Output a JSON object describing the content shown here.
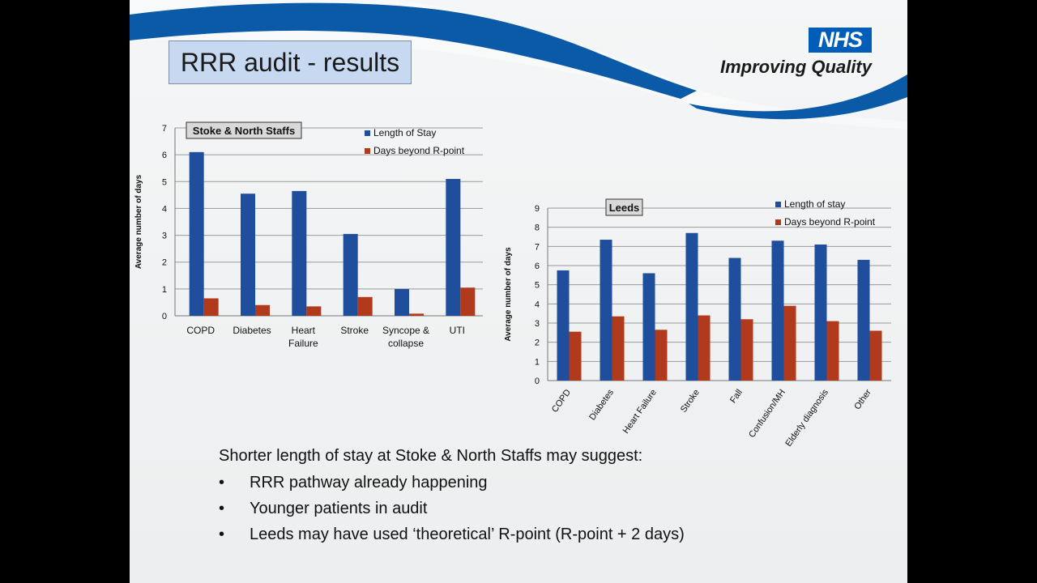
{
  "slide": {
    "title": "RRR audit - results",
    "logo_text": "NHS",
    "tagline": "Improving Quality"
  },
  "summary": {
    "lead": "Shorter length of stay at Stoke & North Staffs may suggest:",
    "bullets": [
      "RRR pathway already happening",
      "Younger patients in audit",
      "Leeds may have used ‘theoretical’ R-point (R-point + 2 days)"
    ]
  },
  "colors": {
    "series1": "#1f4e9c",
    "series2": "#b13a1c",
    "nhs_blue": "#005eb8"
  },
  "chart_data": [
    {
      "type": "bar",
      "title": "Stoke & North Staffs",
      "ylabel": "Average number of days",
      "ylim": [
        0,
        7
      ],
      "yticks": [
        0,
        1,
        2,
        3,
        4,
        5,
        6,
        7
      ],
      "grid": true,
      "legend_position": "top-right",
      "categories": [
        "COPD",
        "Diabetes",
        "Heart Failure",
        "Stroke",
        "Syncope & collapse",
        "UTI"
      ],
      "series": [
        {
          "name": "Length of Stay",
          "values": [
            6.1,
            4.55,
            4.65,
            3.05,
            1.0,
            5.1
          ]
        },
        {
          "name": "Days beyond R-point",
          "values": [
            0.65,
            0.4,
            0.35,
            0.7,
            0.08,
            1.05
          ]
        }
      ]
    },
    {
      "type": "bar",
      "title": "Leeds",
      "ylabel": "Average number of days",
      "ylim": [
        0,
        9
      ],
      "yticks": [
        0,
        1,
        2,
        3,
        4,
        5,
        6,
        7,
        8,
        9
      ],
      "grid": true,
      "legend_position": "top-right",
      "categories": [
        "COPD",
        "Diabetes",
        "Heart Failure",
        "Stroke",
        "Fall",
        "Confusion/MH",
        "Elderly diagnosis",
        "Other"
      ],
      "series": [
        {
          "name": "Length of stay",
          "values": [
            5.75,
            7.35,
            5.6,
            7.7,
            6.4,
            7.3,
            7.1,
            6.3
          ]
        },
        {
          "name": "Days beyond R-point",
          "values": [
            2.55,
            3.35,
            2.65,
            3.4,
            3.2,
            3.9,
            3.1,
            2.6
          ]
        }
      ]
    }
  ]
}
